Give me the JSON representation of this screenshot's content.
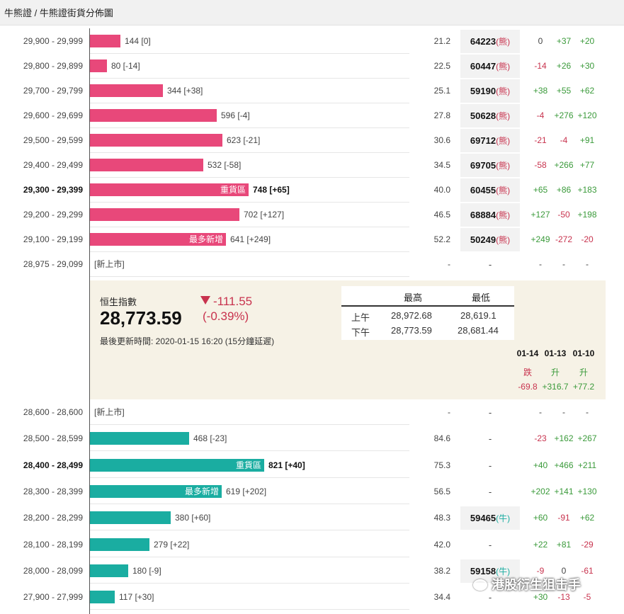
{
  "breadcrumb": "牛熊證 / 牛熊證街貨分佈圖",
  "colors": {
    "bear": "#e8487a",
    "bull": "#1aada1",
    "positive": "#3a9a3a",
    "negative": "#c8334e"
  },
  "bear_rows": [
    {
      "range": "29,900 - 29,999",
      "bar_value": 144,
      "bar_label": "144 [0]",
      "tag": "",
      "pct": "21.2",
      "code": "64223",
      "kind": "(熊)",
      "d1": "0",
      "d2": "+37",
      "d3": "+20"
    },
    {
      "range": "29,800 - 29,899",
      "bar_value": 80,
      "bar_label": "80 [-14]",
      "tag": "",
      "pct": "22.5",
      "code": "60447",
      "kind": "(熊)",
      "d1": "-14",
      "d2": "+26",
      "d3": "+30"
    },
    {
      "range": "29,700 - 29,799",
      "bar_value": 344,
      "bar_label": "344 [+38]",
      "tag": "",
      "pct": "25.1",
      "code": "59190",
      "kind": "(熊)",
      "d1": "+38",
      "d2": "+55",
      "d3": "+62"
    },
    {
      "range": "29,600 - 29,699",
      "bar_value": 596,
      "bar_label": "596 [-4]",
      "tag": "",
      "pct": "27.8",
      "code": "50628",
      "kind": "(熊)",
      "d1": "-4",
      "d2": "+276",
      "d3": "+120"
    },
    {
      "range": "29,500 - 29,599",
      "bar_value": 623,
      "bar_label": "623 [-21]",
      "tag": "",
      "pct": "30.6",
      "code": "69712",
      "kind": "(熊)",
      "d1": "-21",
      "d2": "-4",
      "d3": "+91"
    },
    {
      "range": "29,400 - 29,499",
      "bar_value": 532,
      "bar_label": "532 [-58]",
      "tag": "",
      "pct": "34.5",
      "code": "69705",
      "kind": "(熊)",
      "d1": "-58",
      "d2": "+266",
      "d3": "+77"
    },
    {
      "range": "29,300 - 29,399",
      "bar_value": 748,
      "bar_label": "748 [+65]",
      "tag": "重貨區",
      "bold": true,
      "pct": "40.0",
      "code": "60455",
      "kind": "(熊)",
      "d1": "+65",
      "d2": "+86",
      "d3": "+183"
    },
    {
      "range": "29,200 - 29,299",
      "bar_value": 702,
      "bar_label": "702 [+127]",
      "tag": "",
      "pct": "46.5",
      "code": "68884",
      "kind": "(熊)",
      "d1": "+127",
      "d2": "-50",
      "d3": "+198"
    },
    {
      "range": "29,100 - 29,199",
      "bar_value": 641,
      "bar_label": "641 [+249]",
      "tag": "最多新增",
      "pct": "52.2",
      "code": "50249",
      "kind": "(熊)",
      "d1": "+249",
      "d2": "-272",
      "d3": "-20"
    },
    {
      "range": "28,975 - 29,099",
      "bar_value": 0,
      "bar_label": "[新上市]",
      "tag": "",
      "pct": "-",
      "code": "-",
      "kind": "",
      "d1": "-",
      "d2": "-",
      "d3": "-"
    }
  ],
  "index_panel": {
    "label": "恒生指數",
    "value": "28,773.59",
    "change": "-111.55",
    "change_pct": "(-0.39%)",
    "updated": "最後更新時間: 2020-01-15 16:20 (15分鐘延遲)",
    "hl_headers": {
      "high": "最高",
      "low": "最低"
    },
    "am": {
      "label": "上午",
      "high": "28,972.68",
      "low": "28,619.1"
    },
    "pm": {
      "label": "下午",
      "high": "28,773.59",
      "low": "28,681.44"
    },
    "days": [
      {
        "date": "01-14",
        "dir": "跌",
        "change": "-69.8"
      },
      {
        "date": "01-13",
        "dir": "升",
        "change": "+316.7"
      },
      {
        "date": "01-10",
        "dir": "升",
        "change": "+77.2"
      }
    ]
  },
  "bull_rows": [
    {
      "range": "28,600 - 28,600",
      "bar_value": 0,
      "bar_label": "[新上市]",
      "tag": "",
      "pct": "-",
      "code": "-",
      "kind": "",
      "d1": "-",
      "d2": "-",
      "d3": "-"
    },
    {
      "range": "28,500 - 28,599",
      "bar_value": 468,
      "bar_label": "468 [-23]",
      "tag": "",
      "pct": "84.6",
      "code": "-",
      "kind": "",
      "d1": "-23",
      "d2": "+162",
      "d3": "+267"
    },
    {
      "range": "28,400 - 28,499",
      "bar_value": 821,
      "bar_label": "821 [+40]",
      "tag": "重貨區",
      "bold": true,
      "pct": "75.3",
      "code": "-",
      "kind": "",
      "d1": "+40",
      "d2": "+466",
      "d3": "+211"
    },
    {
      "range": "28,300 - 28,399",
      "bar_value": 619,
      "bar_label": "619 [+202]",
      "tag": "最多新增",
      "pct": "56.5",
      "code": "-",
      "kind": "",
      "d1": "+202",
      "d2": "+141",
      "d3": "+130"
    },
    {
      "range": "28,200 - 28,299",
      "bar_value": 380,
      "bar_label": "380 [+60]",
      "tag": "",
      "pct": "48.3",
      "code": "59465",
      "kind": "(牛)",
      "d1": "+60",
      "d2": "-91",
      "d3": "+62"
    },
    {
      "range": "28,100 - 28,199",
      "bar_value": 279,
      "bar_label": "279 [+22]",
      "tag": "",
      "pct": "42.0",
      "code": "-",
      "kind": "",
      "d1": "+22",
      "d2": "+81",
      "d3": "-29"
    },
    {
      "range": "28,000 - 28,099",
      "bar_value": 180,
      "bar_label": "180 [-9]",
      "tag": "",
      "pct": "38.2",
      "code": "59158",
      "kind": "(牛)",
      "d1": "-9",
      "d2": "0",
      "d3": "-61"
    },
    {
      "range": "27,900 - 27,999",
      "bar_value": 117,
      "bar_label": "117 [+30]",
      "tag": "",
      "pct": "34.4",
      "code": "-",
      "kind": "",
      "d1": "+30",
      "d2": "-13",
      "d3": "-5"
    }
  ],
  "watermark": "港股衍生狙击手"
}
